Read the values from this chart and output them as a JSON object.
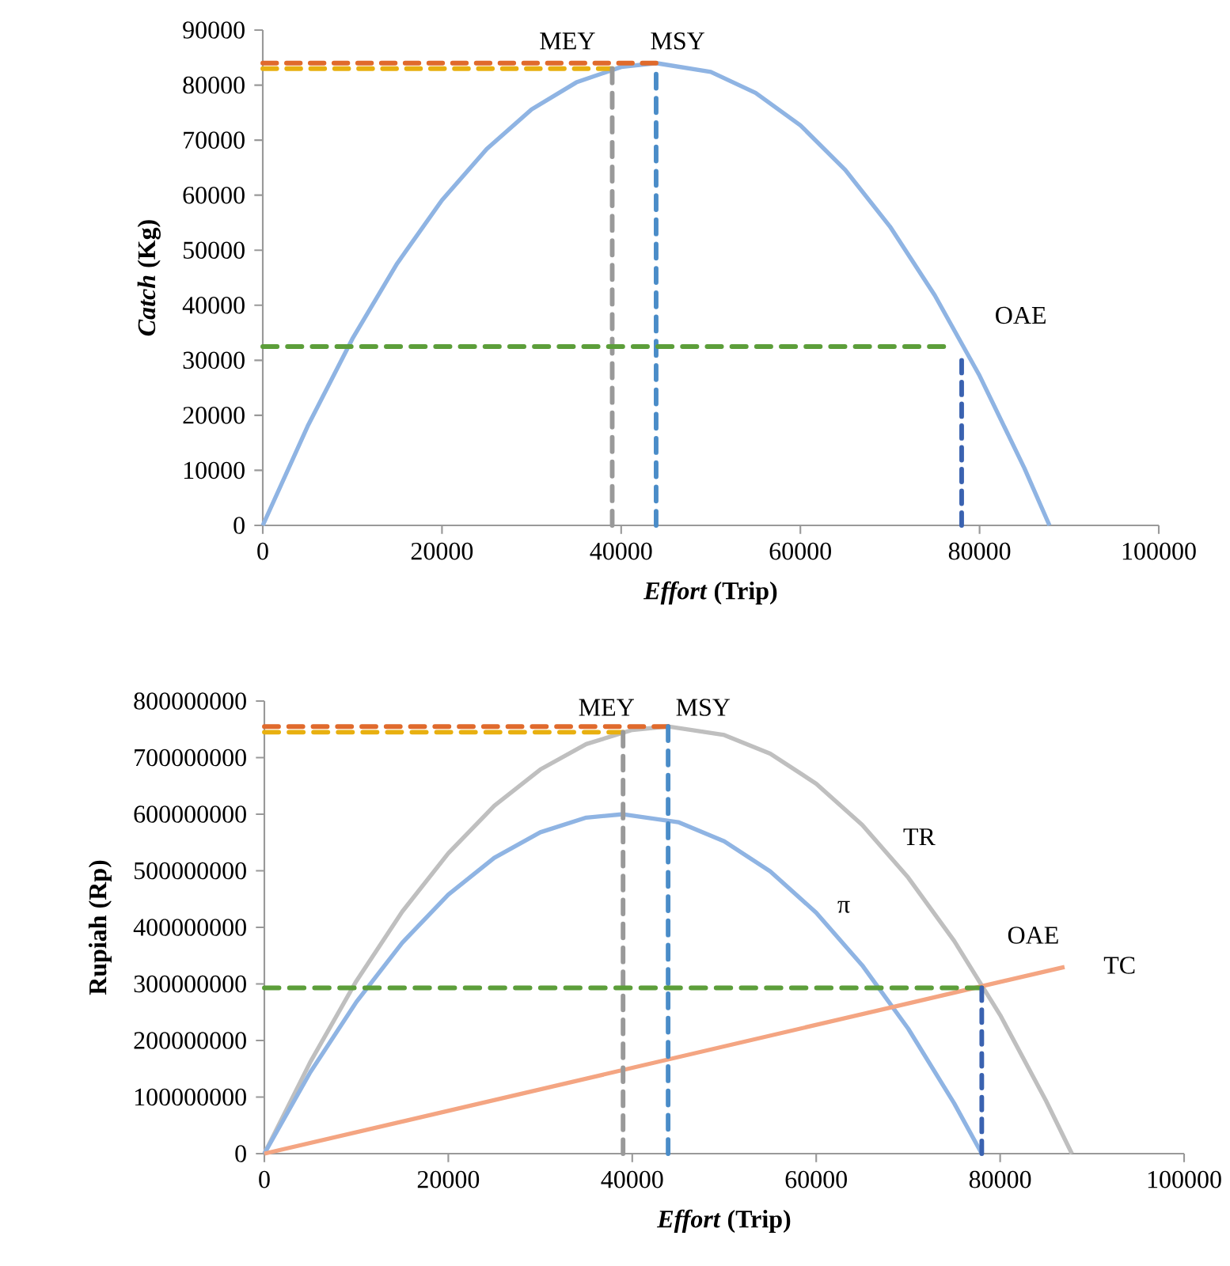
{
  "chart_data": [
    {
      "type": "line",
      "xlabel": "*Effort* (Trip)",
      "ylabel": "*Catch* (Kg)",
      "xlim": [
        0,
        100000
      ],
      "ylim": [
        0,
        90000
      ],
      "xticks": [
        0,
        20000,
        40000,
        60000,
        80000,
        100000
      ],
      "yticks": [
        0,
        10000,
        20000,
        30000,
        40000,
        50000,
        60000,
        70000,
        80000,
        90000
      ],
      "series": [
        {
          "color": "#8fb4e3",
          "x": [
            0,
            5000,
            10000,
            15000,
            20000,
            25000,
            30000,
            35000,
            40000,
            43900,
            50000,
            55000,
            60000,
            65000,
            70000,
            75000,
            80000,
            85000,
            87800
          ],
          "values": [
            0,
            18000,
            33900,
            47600,
            59100,
            68400,
            75600,
            80500,
            83300,
            84000,
            82400,
            78600,
            72700,
            64600,
            54300,
            41800,
            27200,
            10400,
            0
          ]
        },
        {
          "color": "#e06a2c",
          "line_style": "dashed",
          "x": [
            0,
            43900
          ],
          "values": [
            84000,
            84000
          ]
        },
        {
          "color": "#e8b010",
          "line_style": "dashed",
          "x": [
            0,
            39000
          ],
          "values": [
            83000,
            83000
          ]
        },
        {
          "color": "#999999",
          "line_style": "dashed",
          "x": [
            39000,
            39000
          ],
          "values": [
            0,
            83000
          ]
        },
        {
          "color": "#4a8cc8",
          "line_style": "dashed",
          "x": [
            43900,
            43900
          ],
          "values": [
            0,
            82000
          ]
        },
        {
          "color": "#5c9e3a",
          "line_style": "dashed",
          "x": [
            0,
            76000
          ],
          "values": [
            32500,
            32500
          ]
        },
        {
          "color": "#3a62b0",
          "line_style": "dashed",
          "x": [
            78000,
            78000
          ],
          "values": [
            0,
            30000
          ]
        }
      ],
      "annotations": [
        "MEY",
        "MSY",
        "OAE"
      ]
    },
    {
      "type": "line",
      "xlabel": "*Effort* (Trip)",
      "ylabel": "Rupiah (Rp)",
      "xlim": [
        0,
        100000
      ],
      "ylim": [
        0,
        800000000
      ],
      "xticks": [
        0,
        20000,
        40000,
        60000,
        80000,
        100000
      ],
      "yticks": [
        0,
        100000000,
        200000000,
        300000000,
        400000000,
        500000000,
        600000000,
        700000000,
        800000000
      ],
      "series": [
        {
          "color": "#bfbfbf",
          "x": [
            0,
            5000,
            10000,
            15000,
            20000,
            25000,
            30000,
            35000,
            40000,
            43900,
            50000,
            55000,
            60000,
            65000,
            70000,
            75000,
            80000,
            85000,
            87800
          ],
          "values": [
            0,
            162000000,
            305000000,
            428000000,
            531000000,
            615000000,
            679000000,
            724000000,
            749000000,
            755000000,
            740000000,
            707000000,
            654000000,
            581000000,
            488000000,
            376000000,
            245000000,
            93000000,
            0
          ]
        },
        {
          "color": "#8fb4e3",
          "x": [
            0,
            5000,
            10000,
            15000,
            20000,
            25000,
            30000,
            35000,
            39000,
            45000,
            50000,
            55000,
            60000,
            65000,
            70000,
            75000,
            78000
          ],
          "values": [
            0,
            144000000,
            268000000,
            373000000,
            458000000,
            523000000,
            568000000,
            594000000,
            600000000,
            586000000,
            552000000,
            499000000,
            426000000,
            333000000,
            221000000,
            89000000,
            0
          ]
        },
        {
          "color": "#f4a582",
          "x": [
            0,
            87000
          ],
          "values": [
            0,
            330000000
          ]
        },
        {
          "color": "#e06a2c",
          "line_style": "dashed",
          "x": [
            0,
            43900
          ],
          "values": [
            755000000,
            755000000
          ]
        },
        {
          "color": "#e8b010",
          "line_style": "dashed",
          "x": [
            0,
            39000
          ],
          "values": [
            745000000,
            745000000
          ]
        },
        {
          "color": "#999999",
          "line_style": "dashed",
          "x": [
            39000,
            39000
          ],
          "values": [
            0,
            745000000
          ]
        },
        {
          "color": "#4a8cc8",
          "line_style": "dashed",
          "x": [
            43900,
            43900
          ],
          "values": [
            0,
            755000000
          ]
        },
        {
          "color": "#5c9e3a",
          "line_style": "dashed",
          "x": [
            0,
            78000
          ],
          "values": [
            293000000,
            293000000
          ]
        },
        {
          "color": "#3a62b0",
          "line_style": "dashed",
          "x": [
            78000,
            78000
          ],
          "values": [
            0,
            293000000
          ]
        }
      ],
      "annotations": [
        "MEY",
        "MSY",
        "TR",
        "π",
        "OAE",
        "TC"
      ]
    }
  ]
}
